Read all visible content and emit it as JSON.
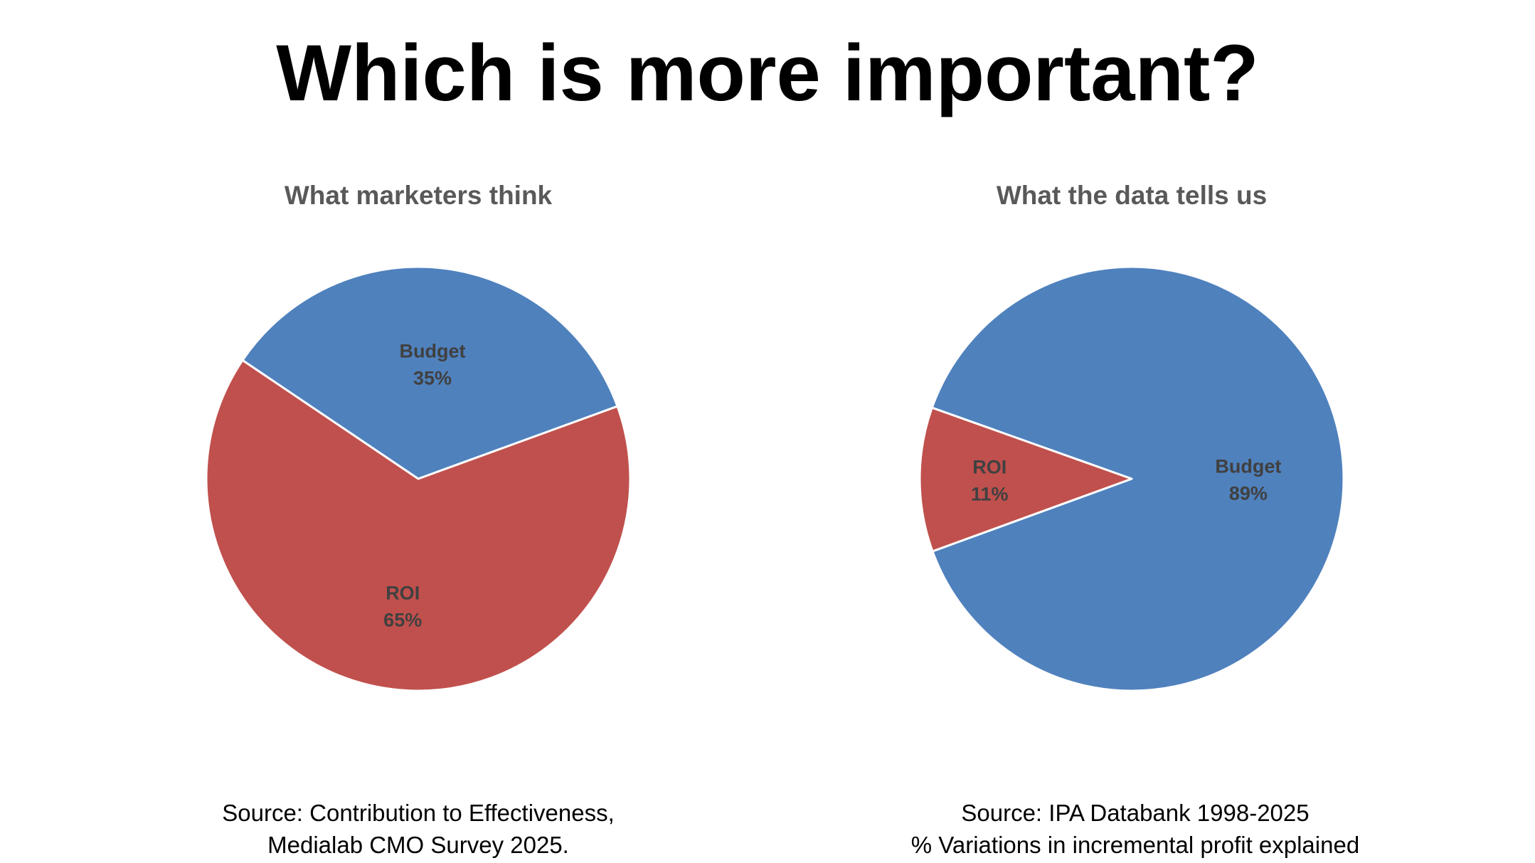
{
  "page": {
    "title": "Which is more important?"
  },
  "colors": {
    "budget": "#4f81bd",
    "roi": "#c0504d",
    "chart_title": "#595959",
    "data_label": "#404040"
  },
  "chart_data": [
    {
      "type": "pie",
      "title": "What marketers think",
      "categories": [
        "Budget",
        "ROI"
      ],
      "values": [
        35,
        65
      ],
      "value_labels": [
        "35%",
        "65%"
      ],
      "legend": "none",
      "source_lines": [
        "Source: Contribution to Effectiveness,",
        "Medialab CMO Survey 2025."
      ]
    },
    {
      "type": "pie",
      "title": "What the data tells us",
      "categories": [
        "Budget",
        "ROI"
      ],
      "values": [
        89,
        11
      ],
      "value_labels": [
        "89%",
        "11%"
      ],
      "legend": "none",
      "source_lines": [
        "Source: IPA Databank 1998-2025",
        "% Variations in incremental profit explained"
      ]
    }
  ]
}
